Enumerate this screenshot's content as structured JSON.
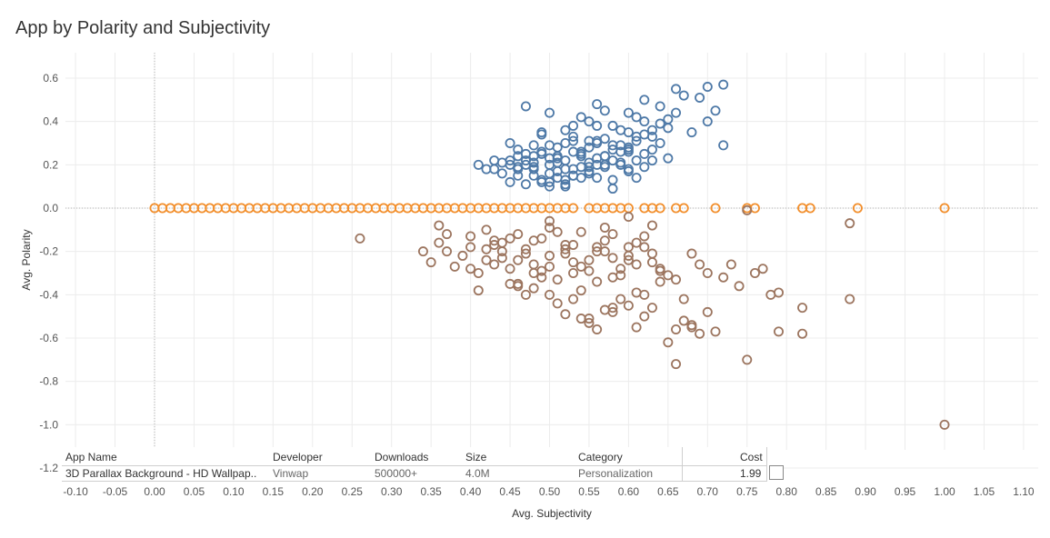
{
  "title": "App by Polarity and Subjectivity",
  "colors": {
    "positive": "#4e79a7",
    "neutral": "#f28e2b",
    "negative": "#9c755f",
    "grid": "#ececec",
    "zero_line": "#b0b0b0"
  },
  "chart_data": {
    "type": "scatter",
    "title": "App by Polarity and Subjectivity",
    "xlabel": "Avg. Subjectivity",
    "ylabel": "Avg. Polarity",
    "xlim": [
      -0.12,
      1.12
    ],
    "ylim": [
      -1.2,
      0.65
    ],
    "xticks": [
      "-0.10",
      "-0.05",
      "0.00",
      "0.05",
      "0.10",
      "0.15",
      "0.20",
      "0.25",
      "0.30",
      "0.35",
      "0.40",
      "0.45",
      "0.50",
      "0.55",
      "0.60",
      "0.65",
      "0.70",
      "0.75",
      "0.80",
      "0.85",
      "0.90",
      "0.95",
      "1.00",
      "1.05",
      "1.10"
    ],
    "yticks": [
      "0.6",
      "0.4",
      "0.2",
      "0.0",
      "-0.2",
      "-0.4",
      "-0.6",
      "-0.8",
      "-1.0",
      "-1.2"
    ],
    "marker": "open-circle",
    "grid": true,
    "series": [
      {
        "color": "#4e79a7",
        "x": [
          0.45,
          0.46,
          0.47,
          0.48,
          0.49,
          0.5,
          0.5,
          0.51,
          0.52,
          0.53,
          0.54,
          0.55,
          0.56,
          0.57,
          0.48,
          0.5,
          0.52,
          0.54,
          0.56,
          0.58,
          0.6,
          0.47,
          0.49,
          0.51,
          0.53,
          0.55,
          0.57,
          0.59,
          0.61,
          0.46,
          0.48,
          0.5,
          0.52,
          0.54,
          0.56,
          0.58,
          0.6,
          0.62,
          0.44,
          0.45,
          0.47,
          0.49,
          0.51,
          0.53,
          0.55,
          0.57,
          0.59,
          0.61,
          0.63,
          0.5,
          0.52,
          0.54,
          0.56,
          0.58,
          0.6,
          0.62,
          0.64,
          0.49,
          0.51,
          0.53,
          0.55,
          0.57,
          0.59,
          0.61,
          0.63,
          0.65,
          0.43,
          0.45,
          0.48,
          0.5,
          0.53,
          0.56,
          0.59,
          0.62,
          0.66,
          0.67,
          0.7,
          0.72,
          0.71,
          0.69,
          0.64,
          0.61,
          0.58,
          0.55,
          0.52,
          0.47,
          0.46,
          0.42,
          0.41,
          0.44,
          0.46,
          0.49,
          0.52,
          0.55,
          0.58,
          0.6,
          0.62,
          0.65,
          0.68,
          0.7,
          0.72,
          0.6,
          0.57,
          0.54,
          0.51,
          0.48,
          0.53,
          0.56,
          0.59,
          0.62,
          0.64,
          0.66,
          0.63,
          0.6,
          0.57,
          0.54,
          0.51,
          0.48,
          0.45,
          0.5,
          0.55,
          0.6,
          0.65,
          0.58,
          0.52,
          0.49,
          0.46,
          0.43,
          0.47,
          0.53,
          0.56,
          0.61,
          0.63
        ],
        "y": [
          0.2,
          0.18,
          0.22,
          0.15,
          0.25,
          0.2,
          0.12,
          0.28,
          0.22,
          0.18,
          0.26,
          0.21,
          0.3,
          0.19,
          0.24,
          0.16,
          0.3,
          0.14,
          0.23,
          0.27,
          0.35,
          0.11,
          0.26,
          0.21,
          0.33,
          0.17,
          0.24,
          0.2,
          0.31,
          0.27,
          0.19,
          0.29,
          0.13,
          0.25,
          0.38,
          0.22,
          0.18,
          0.4,
          0.16,
          0.3,
          0.2,
          0.34,
          0.24,
          0.15,
          0.28,
          0.32,
          0.26,
          0.22,
          0.36,
          0.1,
          0.18,
          0.42,
          0.14,
          0.29,
          0.44,
          0.25,
          0.3,
          0.35,
          0.23,
          0.38,
          0.19,
          0.45,
          0.21,
          0.33,
          0.27,
          0.41,
          0.18,
          0.22,
          0.29,
          0.44,
          0.31,
          0.48,
          0.36,
          0.5,
          0.55,
          0.52,
          0.56,
          0.57,
          0.45,
          0.51,
          0.47,
          0.42,
          0.38,
          0.4,
          0.36,
          0.47,
          0.24,
          0.18,
          0.2,
          0.21,
          0.15,
          0.12,
          0.1,
          0.16,
          0.13,
          0.17,
          0.19,
          0.23,
          0.35,
          0.4,
          0.29,
          0.28,
          0.24,
          0.19,
          0.17,
          0.21,
          0.26,
          0.31,
          0.29,
          0.34,
          0.39,
          0.44,
          0.33,
          0.26,
          0.2,
          0.24,
          0.14,
          0.18,
          0.12,
          0.23,
          0.31,
          0.27,
          0.37,
          0.09,
          0.11,
          0.13,
          0.19,
          0.22,
          0.25,
          0.15,
          0.2,
          0.14,
          0.22
        ]
      },
      {
        "color": "#f28e2b",
        "x": [
          0.0,
          0.01,
          0.02,
          0.03,
          0.04,
          0.05,
          0.06,
          0.07,
          0.08,
          0.09,
          0.1,
          0.11,
          0.12,
          0.13,
          0.14,
          0.15,
          0.16,
          0.17,
          0.18,
          0.19,
          0.2,
          0.21,
          0.22,
          0.23,
          0.24,
          0.25,
          0.26,
          0.27,
          0.28,
          0.29,
          0.3,
          0.31,
          0.32,
          0.33,
          0.34,
          0.35,
          0.36,
          0.37,
          0.38,
          0.39,
          0.4,
          0.41,
          0.42,
          0.43,
          0.44,
          0.45,
          0.46,
          0.47,
          0.48,
          0.49,
          0.5,
          0.51,
          0.52,
          0.53,
          0.55,
          0.56,
          0.57,
          0.58,
          0.59,
          0.6,
          0.62,
          0.63,
          0.64,
          0.66,
          0.67,
          0.71,
          0.75,
          0.76,
          0.82,
          0.83,
          0.89,
          1.0
        ],
        "y": [
          0,
          0,
          0,
          0,
          0,
          0,
          0,
          0,
          0,
          0,
          0,
          0,
          0,
          0,
          0,
          0,
          0,
          0,
          0,
          0,
          0,
          0,
          0,
          0,
          0,
          0,
          0,
          0,
          0,
          0,
          0,
          0,
          0,
          0,
          0,
          0,
          0,
          0,
          0,
          0,
          0,
          0,
          0,
          0,
          0,
          0,
          0,
          0,
          0,
          0,
          0,
          0,
          0,
          0,
          0,
          0,
          0,
          0,
          0,
          0,
          0,
          0,
          0,
          0,
          0,
          0,
          0,
          0,
          0,
          0,
          0,
          0
        ]
      },
      {
        "color": "#9c755f",
        "x": [
          0.26,
          0.34,
          0.35,
          0.36,
          0.37,
          0.38,
          0.39,
          0.4,
          0.41,
          0.42,
          0.43,
          0.44,
          0.45,
          0.46,
          0.47,
          0.48,
          0.49,
          0.5,
          0.51,
          0.52,
          0.53,
          0.54,
          0.55,
          0.56,
          0.57,
          0.58,
          0.59,
          0.6,
          0.61,
          0.62,
          0.63,
          0.64,
          0.42,
          0.44,
          0.46,
          0.48,
          0.5,
          0.52,
          0.54,
          0.56,
          0.58,
          0.6,
          0.62,
          0.43,
          0.45,
          0.47,
          0.49,
          0.51,
          0.53,
          0.55,
          0.57,
          0.59,
          0.61,
          0.63,
          0.65,
          0.4,
          0.42,
          0.44,
          0.46,
          0.48,
          0.5,
          0.52,
          0.54,
          0.56,
          0.58,
          0.6,
          0.62,
          0.64,
          0.66,
          0.68,
          0.67,
          0.69,
          0.7,
          0.72,
          0.73,
          0.76,
          0.77,
          0.79,
          0.82,
          0.82,
          0.88,
          0.88,
          0.75,
          0.74,
          0.7,
          0.67,
          0.66,
          0.65,
          0.63,
          0.61,
          0.6,
          0.58,
          0.55,
          0.53,
          0.5,
          0.48,
          0.45,
          0.4,
          0.37,
          0.36,
          0.41,
          0.47,
          0.51,
          0.57,
          0.62,
          0.68,
          0.71,
          0.78,
          0.79,
          0.75,
          1.0,
          0.66,
          0.68,
          0.69,
          0.64,
          0.59,
          0.56,
          0.54,
          0.52,
          0.49,
          0.46,
          0.43,
          0.55,
          0.58,
          0.61,
          0.53,
          0.5,
          0.57,
          0.6,
          0.63
        ],
        "y": [
          -0.14,
          -0.2,
          -0.25,
          -0.16,
          -0.12,
          -0.27,
          -0.22,
          -0.18,
          -0.3,
          -0.24,
          -0.15,
          -0.2,
          -0.28,
          -0.12,
          -0.19,
          -0.26,
          -0.14,
          -0.22,
          -0.33,
          -0.17,
          -0.25,
          -0.11,
          -0.29,
          -0.2,
          -0.15,
          -0.23,
          -0.31,
          -0.18,
          -0.26,
          -0.13,
          -0.21,
          -0.28,
          -0.1,
          -0.16,
          -0.24,
          -0.3,
          -0.09,
          -0.19,
          -0.27,
          -0.34,
          -0.12,
          -0.22,
          -0.18,
          -0.26,
          -0.14,
          -0.21,
          -0.29,
          -0.11,
          -0.17,
          -0.24,
          -0.2,
          -0.28,
          -0.16,
          -0.25,
          -0.31,
          -0.13,
          -0.19,
          -0.23,
          -0.35,
          -0.15,
          -0.27,
          -0.21,
          -0.38,
          -0.18,
          -0.32,
          -0.24,
          -0.4,
          -0.29,
          -0.33,
          -0.21,
          -0.42,
          -0.26,
          -0.3,
          -0.32,
          -0.26,
          -0.3,
          -0.28,
          -0.39,
          -0.46,
          -0.58,
          -0.42,
          -0.07,
          -0.01,
          -0.36,
          -0.48,
          -0.52,
          -0.56,
          -0.62,
          -0.46,
          -0.55,
          -0.45,
          -0.48,
          -0.51,
          -0.42,
          -0.4,
          -0.37,
          -0.35,
          -0.28,
          -0.2,
          -0.08,
          -0.38,
          -0.4,
          -0.44,
          -0.47,
          -0.5,
          -0.54,
          -0.57,
          -0.4,
          -0.57,
          -0.7,
          -1.0,
          -0.72,
          -0.55,
          -0.58,
          -0.34,
          -0.42,
          -0.56,
          -0.51,
          -0.49,
          -0.32,
          -0.36,
          -0.17,
          -0.53,
          -0.46,
          -0.39,
          -0.3,
          -0.06,
          -0.09,
          -0.04,
          -0.08
        ]
      }
    ],
    "extra_points_blue": {
      "x": [
        0.9,
        0.89
      ],
      "y": [
        0.0,
        0.0
      ]
    }
  },
  "tooltip": {
    "headers": {
      "app_name": "App Name",
      "developer": "Developer",
      "downloads": "Downloads",
      "size": "Size",
      "category": "Category",
      "cost": "Cost"
    },
    "row": {
      "app_name": "3D Parallax Background - HD Wallpap..",
      "developer": "Vinwap",
      "downloads": "500000+",
      "size": "4.0M",
      "category": "Personalization",
      "cost": "1.99"
    }
  }
}
